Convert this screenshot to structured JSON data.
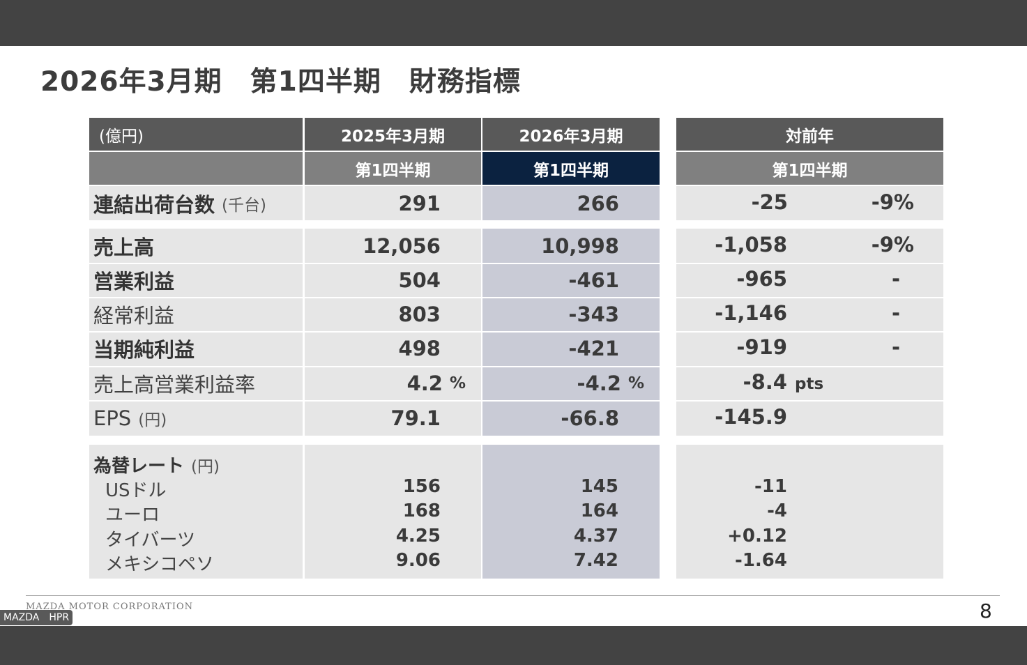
{
  "title": "2026年3月期　第1四半期　財務指標",
  "table": {
    "unit_label": "(億円)",
    "col_prev": "2025年3月期",
    "col_cur": "2026年3月期",
    "col_yoy": "対前年",
    "sub_prev": "第1四半期",
    "sub_cur": "第1四半期",
    "sub_yoy": "第1四半期",
    "shipments": {
      "label": "連結出荷台数",
      "unit": "(千台)",
      "prev": "291",
      "cur": "266",
      "yoy_abs": "-25",
      "yoy_pct": "-9%"
    },
    "rows": [
      {
        "label": "売上高",
        "prev": "12,056",
        "cur": "10,998",
        "yoy_abs": "-1,058",
        "yoy_pct": "-9%"
      },
      {
        "label": "営業利益",
        "prev": "504",
        "cur": "-461",
        "yoy_abs": "-965",
        "yoy_pct": "-"
      },
      {
        "label": "経常利益",
        "prev": "803",
        "cur": "-343",
        "yoy_abs": "-1,146",
        "yoy_pct": "-"
      },
      {
        "label": "当期純利益",
        "prev": "498",
        "cur": "-421",
        "yoy_abs": "-919",
        "yoy_pct": "-"
      },
      {
        "label": "売上高営業利益率",
        "prev": "4.2",
        "prev_unit": "%",
        "cur": "-4.2",
        "cur_unit": "%",
        "yoy_abs": "-8.4",
        "yoy_unit": "pts"
      },
      {
        "label": "EPS",
        "label_unit": "(円)",
        "prev": "79.1",
        "cur": "-66.8",
        "yoy_abs": "-145.9"
      }
    ],
    "fx": {
      "label": "為替レート",
      "unit": "(円)",
      "items": [
        {
          "label": "USドル",
          "prev": "156",
          "cur": "145",
          "yoy": "-11"
        },
        {
          "label": "ユーロ",
          "prev": "168",
          "cur": "164",
          "yoy": "-4"
        },
        {
          "label": "タイバーツ",
          "prev": "4.25",
          "cur": "4.37",
          "yoy": "+0.12"
        },
        {
          "label": "メキシコペソ",
          "prev": "9.06",
          "cur": "7.42",
          "yoy": "-1.64"
        }
      ]
    }
  },
  "footer": {
    "company": "MAZDA MOTOR CORPORATION",
    "page": "8"
  },
  "badge": "MAZDA　HPR",
  "colors": {
    "header": "#595959",
    "subheader": "#808080",
    "current_header": "#0b2240",
    "current_col": "#c9cbd6",
    "cell": "#e6e6e6"
  }
}
